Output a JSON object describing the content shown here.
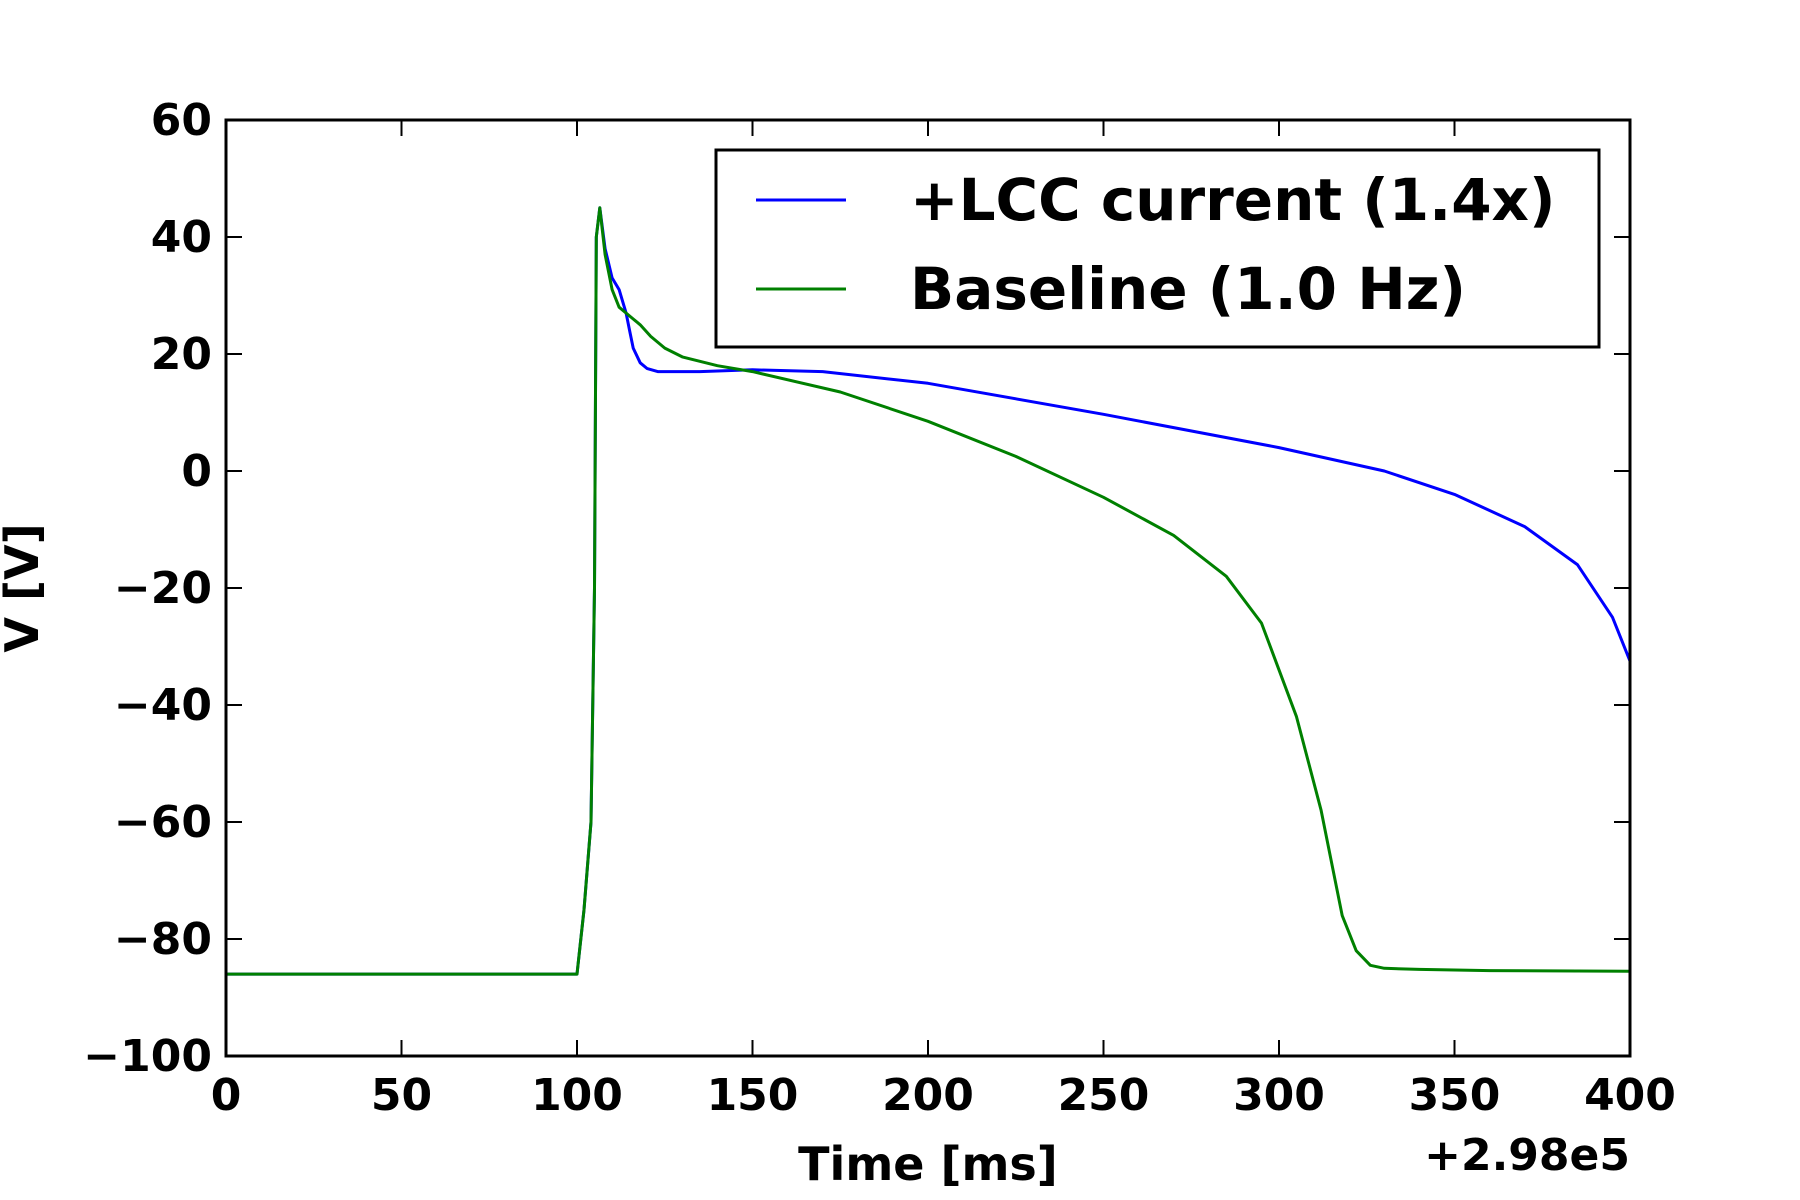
{
  "chart_data": {
    "type": "line",
    "xlabel": "Time [ms]",
    "ylabel": "V [V]",
    "x_offset_label": "+2.98e5",
    "xlim": [
      0,
      400
    ],
    "ylim": [
      -100,
      60
    ],
    "x_ticks": [
      0,
      50,
      100,
      150,
      200,
      250,
      300,
      350,
      400
    ],
    "y_ticks": [
      60,
      40,
      20,
      0,
      -20,
      -40,
      -60,
      -80,
      -100
    ],
    "x_tick_labels": [
      "0",
      "50",
      "100",
      "150",
      "200",
      "250",
      "300",
      "350",
      "400"
    ],
    "y_tick_labels": [
      "60",
      "40",
      "20",
      "0",
      "−20",
      "−40",
      "−60",
      "−80",
      "−100"
    ],
    "grid": false,
    "legend_position": "top-right",
    "series": [
      {
        "name": "+LCC current (1.4x)",
        "color": "#0000ff",
        "x": [
          0,
          100,
          102,
          104,
          105,
          105.5,
          106.5,
          108,
          110,
          112,
          114,
          115,
          116,
          118,
          120,
          123,
          127,
          135,
          150,
          170,
          200,
          250,
          300,
          330,
          350,
          370,
          385,
          395,
          400
        ],
        "y": [
          -86,
          -86,
          -75,
          -60,
          -20,
          40,
          45,
          38,
          33,
          31,
          27,
          24,
          21,
          18.5,
          17.5,
          17,
          17,
          17,
          17.3,
          17,
          15,
          9.7,
          4,
          0,
          -4,
          -9.5,
          -16,
          -25,
          -32.5
        ]
      },
      {
        "name": "Baseline (1.0 Hz)",
        "color": "#008000",
        "x": [
          0,
          100,
          102,
          104,
          105,
          105.5,
          106.5,
          108,
          110,
          112,
          115,
          118,
          121,
          125,
          130,
          140,
          150,
          175,
          200,
          225,
          250,
          270,
          285,
          295,
          305,
          312,
          318,
          322,
          326,
          330,
          340,
          360,
          400
        ],
        "y": [
          -86,
          -86,
          -75,
          -60,
          -20,
          40,
          45,
          37,
          31,
          28,
          26.5,
          25,
          23,
          21,
          19.5,
          18,
          17,
          13.5,
          8.5,
          2.5,
          -4.5,
          -11,
          -18,
          -26,
          -42,
          -58,
          -76,
          -82,
          -84.5,
          -85,
          -85.2,
          -85.4,
          -85.5
        ]
      }
    ]
  }
}
